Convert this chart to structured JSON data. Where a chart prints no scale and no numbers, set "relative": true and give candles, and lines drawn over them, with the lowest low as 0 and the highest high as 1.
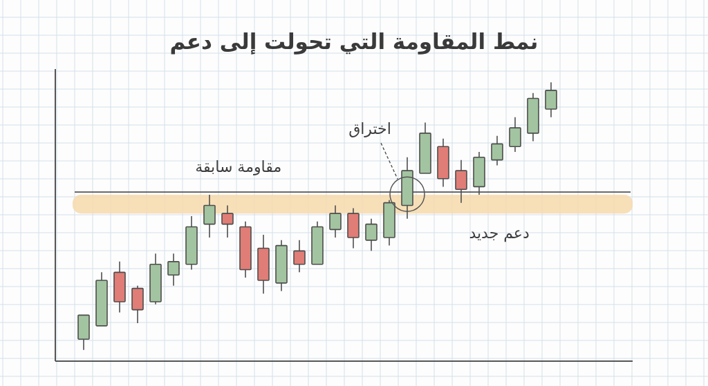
{
  "chart_data": {
    "type": "candlestick",
    "title": "نمط المقاومة التي تحولت إلى دعم",
    "relative": true,
    "grid": true,
    "categories": [
      null,
      null,
      null,
      null,
      null,
      null,
      null,
      null,
      null,
      null,
      null,
      null,
      null,
      null,
      null,
      null,
      null,
      null,
      null,
      null,
      null,
      null,
      null,
      null,
      null,
      null,
      null
    ],
    "ohlc": [
      [
        0.04,
        0.13,
        0,
        0.13
      ],
      [
        0.09,
        0.29,
        0.09,
        0.26
      ],
      [
        0.29,
        0.33,
        0.14,
        0.18
      ],
      [
        0.23,
        0.24,
        0.1,
        0.15
      ],
      [
        0.18,
        0.36,
        0.17,
        0.32
      ],
      [
        0.28,
        0.36,
        0.24,
        0.33
      ],
      [
        0.32,
        0.5,
        0.3,
        0.46
      ],
      [
        0.47,
        0.58,
        0.42,
        0.54
      ],
      [
        0.51,
        0.54,
        0.42,
        0.47
      ],
      [
        0.46,
        0.48,
        0.27,
        0.3
      ],
      [
        0.38,
        0.43,
        0.21,
        0.26
      ],
      [
        0.25,
        0.41,
        0.22,
        0.39
      ],
      [
        0.37,
        0.41,
        0.29,
        0.32
      ],
      [
        0.32,
        0.48,
        0.32,
        0.46
      ],
      [
        0.45,
        0.54,
        0.42,
        0.51
      ],
      [
        0.51,
        0.53,
        0.38,
        0.42
      ],
      [
        0.41,
        0.49,
        0.37,
        0.47
      ],
      [
        0.42,
        0.56,
        0.39,
        0.55
      ],
      [
        0.54,
        0.72,
        0.49,
        0.67
      ],
      [
        0.66,
        0.85,
        0.66,
        0.81
      ],
      [
        0.76,
        0.79,
        0.61,
        0.64
      ],
      [
        0.67,
        0.71,
        0.55,
        0.6
      ],
      [
        0.61,
        0.74,
        0.58,
        0.72
      ],
      [
        0.71,
        0.8,
        0.69,
        0.77
      ],
      [
        0.76,
        0.87,
        0.74,
        0.83
      ],
      [
        0.81,
        0.96,
        0.78,
        0.94
      ],
      [
        0.9,
        1,
        0.87,
        0.97
      ]
    ],
    "colors": [
      "#a3c4a0",
      "#a3c4a0",
      "#e07d76",
      "#e07d76",
      "#a3c4a0",
      "#a3c4a0",
      "#a3c4a0",
      "#a3c4a0",
      "#e07d76",
      "#e07d76",
      "#e07d76",
      "#a3c4a0",
      "#e07d76",
      "#a3c4a0",
      "#a3c4a0",
      "#e07d76",
      "#a3c4a0",
      "#a3c4a0",
      "#a3c4a0",
      "#a3c4a0",
      "#e07d76",
      "#e07d76",
      "#a3c4a0",
      "#a3c4a0",
      "#a3c4a0",
      "#a3c4a0",
      "#a3c4a0"
    ],
    "ref_lines": [
      {
        "axis": "y",
        "value": 0.59,
        "label": "مقاومة سابقة",
        "color": "#555555"
      }
    ],
    "bands": [
      {
        "axis": "y",
        "from": 0.51,
        "to": 0.58,
        "label": "دعم جديد",
        "color": "#f6d9ab"
      }
    ],
    "annotations": [
      "اختراق"
    ]
  }
}
